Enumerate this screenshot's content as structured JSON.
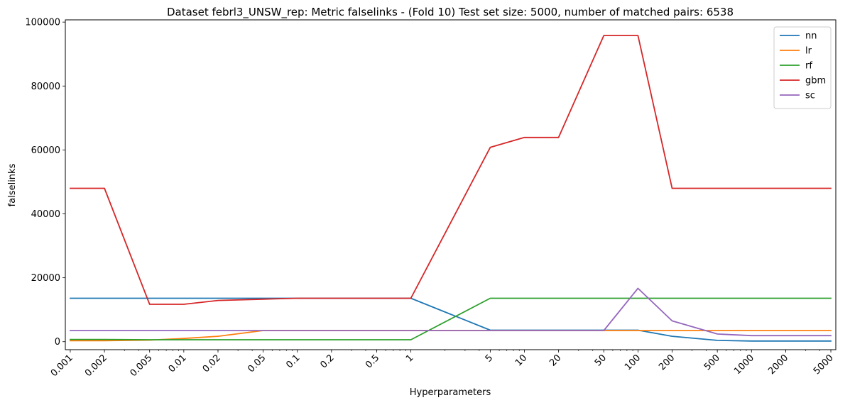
{
  "chart_data": {
    "type": "line",
    "title": "Dataset febrl3_UNSW_rep: Metric falselinks - (Fold 10) Test set size: 5000, number of matched pairs: 6538",
    "xlabel": "Hyperparameters",
    "ylabel": "falselinks",
    "xscale": "log",
    "x": [
      0.001,
      0.002,
      0.005,
      0.01,
      0.02,
      0.05,
      0.1,
      0.2,
      0.5,
      1,
      5,
      10,
      20,
      50,
      100,
      200,
      500,
      1000,
      2000,
      5000
    ],
    "x_tick_labels": [
      "0.001",
      "0.002",
      "0.005",
      "0.01",
      "0.02",
      "0.05",
      "0.1",
      "0.2",
      "0.5",
      "1",
      "5",
      "10",
      "20",
      "50",
      "100",
      "200",
      "500",
      "1000",
      "2000",
      "5000"
    ],
    "ylim": [
      -2500,
      100700
    ],
    "y_ticks": [
      0,
      20000,
      40000,
      60000,
      80000,
      100000
    ],
    "y_tick_labels": [
      "0",
      "20000",
      "40000",
      "60000",
      "80000",
      "100000"
    ],
    "grid": false,
    "legend_position": "top-right",
    "series": [
      {
        "name": "nn",
        "color": "#1f77b4",
        "values": [
          13600,
          13600,
          13600,
          13600,
          13600,
          13600,
          13600,
          13600,
          13600,
          13600,
          3600,
          3600,
          3600,
          3600,
          3600,
          1700,
          400,
          200,
          200,
          200
        ]
      },
      {
        "name": "lr",
        "color": "#ff7f0e",
        "values": [
          300,
          300,
          500,
          1000,
          1700,
          3500,
          3500,
          3500,
          3500,
          3500,
          3500,
          3500,
          3500,
          3500,
          3500,
          3500,
          3500,
          3500,
          3500,
          3500
        ]
      },
      {
        "name": "rf",
        "color": "#2ca02c",
        "values": [
          700,
          700,
          600,
          600,
          600,
          600,
          600,
          600,
          600,
          600,
          13600,
          13600,
          13600,
          13600,
          13600,
          13600,
          13600,
          13600,
          13600,
          13600
        ]
      },
      {
        "name": "gbm",
        "color": "#d62728",
        "values": [
          48000,
          48000,
          11700,
          11700,
          12900,
          13300,
          13600,
          13600,
          13600,
          13600,
          60800,
          63900,
          63900,
          95800,
          95800,
          48000,
          48000,
          48000,
          48000,
          48000
        ]
      },
      {
        "name": "sc",
        "color": "#9467bd",
        "values": [
          3500,
          3500,
          3500,
          3500,
          3500,
          3500,
          3500,
          3500,
          3500,
          3500,
          3500,
          3500,
          3500,
          3500,
          16700,
          6500,
          2400,
          1900,
          1900,
          1900
        ]
      }
    ]
  }
}
